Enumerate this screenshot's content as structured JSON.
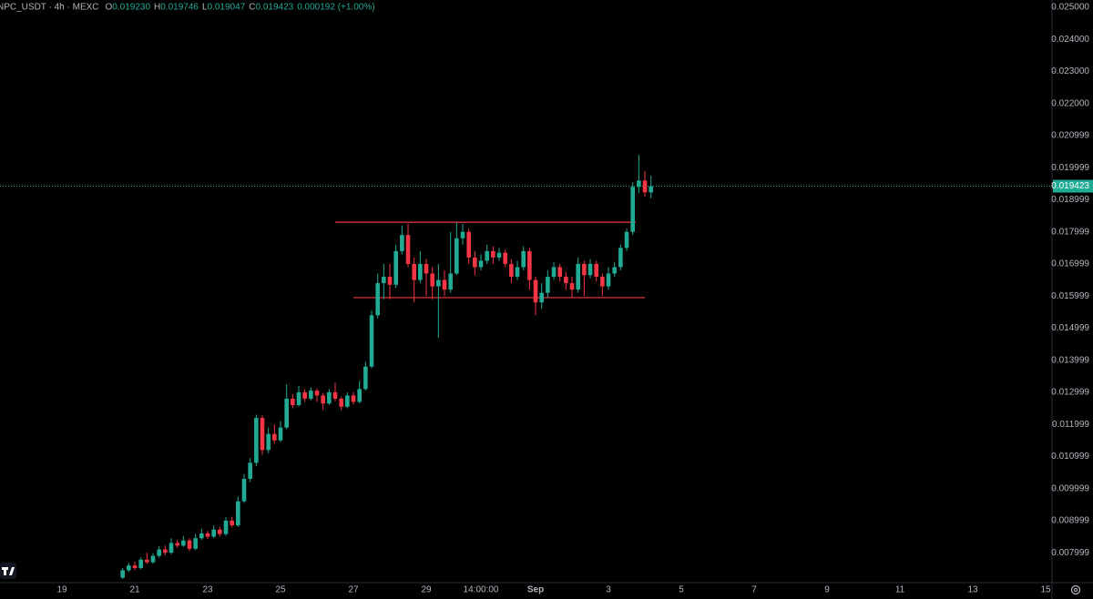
{
  "chart_data": {
    "type": "candlestick",
    "title": "NPC_USDT · 4h · MEXC",
    "ohlc_labels": [
      "O",
      "H",
      "L",
      "C"
    ],
    "ohlc_values": [
      "0.019230",
      "0.019746",
      "0.019047",
      "0.019423"
    ],
    "change": "0.000192 (+1.00%)",
    "up_color": "#22ab94",
    "down_color": "#f23645",
    "last_price": 0.019423,
    "hlines": [
      {
        "value": 0.0183,
        "color": "#f23645"
      },
      {
        "value": 0.01595,
        "color": "#f23645"
      }
    ],
    "ylim": [
      0.007066,
      0.025227
    ],
    "yticks": [
      {
        "value": 0.025,
        "label": "0.025000"
      },
      {
        "value": 0.024,
        "label": "0.024000"
      },
      {
        "value": 0.023,
        "label": "0.023000"
      },
      {
        "value": 0.022,
        "label": "0.022000"
      },
      0.020999,
      0.019999,
      0.018999,
      0.017999,
      0.016999,
      0.015999,
      0.014999,
      0.013999,
      0.012999,
      0.011999,
      0.010999,
      0.009999,
      0.008999,
      0.007999
    ],
    "categories": [
      "19",
      null,
      null,
      null,
      null,
      null,
      null,
      null,
      null,
      null,
      null,
      null,
      "21",
      null,
      null,
      null,
      null,
      null,
      null,
      null,
      null,
      null,
      null,
      null,
      "23",
      null,
      null,
      null,
      null,
      null,
      null,
      null,
      null,
      null,
      null,
      null,
      "25",
      null,
      null,
      null,
      null,
      null,
      null,
      null,
      null,
      null,
      null,
      null,
      "27",
      null,
      null,
      null,
      null,
      null,
      null,
      null,
      null,
      null,
      null,
      null,
      "29",
      null,
      null,
      null,
      null,
      null,
      null,
      null,
      null,
      "14:00:00",
      null,
      null,
      null,
      null,
      null,
      null,
      null,
      null,
      "Sep",
      null,
      null,
      null,
      null,
      null,
      null,
      null,
      null,
      null,
      null,
      null,
      "3",
      null,
      null,
      null,
      null,
      null,
      null,
      null,
      null,
      null,
      null,
      null,
      "5",
      null,
      null,
      null,
      null,
      null,
      null,
      null,
      null,
      null,
      null,
      null,
      "7",
      null,
      null,
      null,
      null,
      null,
      null,
      null,
      null,
      null,
      null,
      null,
      "9",
      null,
      null,
      null,
      null,
      null,
      null,
      null,
      null,
      null,
      null,
      null,
      "11",
      null,
      null,
      null,
      null,
      null,
      null,
      null,
      null,
      null,
      null,
      null,
      "13",
      null,
      null,
      null,
      null,
      null,
      null,
      null,
      null,
      null,
      null,
      null,
      "15"
    ],
    "open": [
      null,
      null,
      null,
      null,
      null,
      null,
      null,
      null,
      null,
      null,
      0.00722,
      0.00745,
      0.0076,
      0.00752,
      0.00778,
      0.0077,
      0.0079,
      0.0081,
      0.008,
      0.0083,
      0.00822,
      0.00838,
      0.00812,
      0.00845,
      0.0086,
      0.0085,
      0.00872,
      0.00858,
      0.009,
      0.00885,
      0.0096,
      0.0103,
      0.0108,
      0.0122,
      0.0112,
      0.0117,
      0.0115,
      0.0119,
      0.0128,
      0.0126,
      0.013,
      0.0128,
      0.01305,
      0.0129,
      0.01265,
      0.013,
      0.0128,
      0.01255,
      0.0129,
      0.0127,
      0.0131,
      0.0138,
      0.0154,
      0.0164,
      0.0166,
      0.01635,
      0.0174,
      0.0179,
      0.017,
      0.0165,
      0.017,
      0.0167,
      0.0163,
      0.0165,
      0.0162,
      0.0167,
      0.0178,
      0.018,
      0.0172,
      0.0169,
      0.0171,
      0.0174,
      0.0172,
      0.01735,
      0.017,
      0.0166,
      0.0169,
      0.0174,
      0.0165,
      0.0158,
      0.0161,
      0.0166,
      0.0169,
      0.0166,
      0.0164,
      0.0162,
      0.017,
      0.01665,
      0.017,
      0.0166,
      0.0163,
      0.0167,
      0.0169,
      0.0175,
      0.018,
      0.0194,
      0.0196,
      0.01923,
      null,
      null,
      null,
      null,
      null,
      null,
      null,
      null,
      null,
      null,
      null,
      null,
      null,
      null,
      null,
      null,
      null,
      null,
      null,
      null,
      null,
      null,
      null,
      null,
      null,
      null,
      null,
      null,
      null,
      null,
      null,
      null,
      null,
      null,
      null,
      null,
      null,
      null,
      null,
      null,
      null,
      null,
      null,
      null,
      null,
      null,
      null,
      null,
      null,
      null,
      null,
      null,
      null,
      null,
      null,
      null,
      null,
      null,
      null,
      null,
      null,
      null,
      null,
      null,
      null
    ],
    "high": [
      null,
      null,
      null,
      null,
      null,
      null,
      null,
      null,
      null,
      null,
      0.00752,
      0.00768,
      0.00772,
      0.00785,
      0.008,
      0.00798,
      0.0082,
      0.00822,
      0.00845,
      0.0084,
      0.00852,
      0.00845,
      0.00858,
      0.00875,
      0.00868,
      0.00885,
      0.0088,
      0.0091,
      0.00912,
      0.00975,
      0.01045,
      0.01095,
      0.0123,
      0.01228,
      0.0119,
      0.012,
      0.0121,
      0.01325,
      0.01295,
      0.0132,
      0.0131,
      0.01315,
      0.01312,
      0.01298,
      0.0131,
      0.0133,
      0.01285,
      0.013,
      0.013,
      0.01335,
      0.01395,
      0.01555,
      0.0167,
      0.017,
      0.017,
      0.0176,
      0.0182,
      0.01825,
      0.0172,
      0.0174,
      0.01715,
      0.0169,
      0.017,
      0.0168,
      0.018,
      0.0183,
      0.01825,
      0.0181,
      0.0174,
      0.0173,
      0.0176,
      0.01755,
      0.0175,
      0.01745,
      0.01715,
      0.0171,
      0.01755,
      0.0175,
      0.0166,
      0.0164,
      0.0168,
      0.01705,
      0.017,
      0.01675,
      0.0166,
      0.0172,
      0.0171,
      0.01715,
      0.0171,
      0.0167,
      0.0169,
      0.01705,
      0.0176,
      0.0181,
      0.01955,
      0.0204,
      0.0199,
      0.019746,
      null,
      null,
      null,
      null,
      null,
      null,
      null,
      null,
      null,
      null,
      null,
      null,
      null,
      null,
      null,
      null,
      null,
      null,
      null,
      null,
      null,
      null,
      null,
      null,
      null,
      null,
      null,
      null,
      null,
      null,
      null,
      null,
      null,
      null,
      null,
      null,
      null,
      null,
      null,
      null,
      null,
      null,
      null,
      null,
      null,
      null,
      null,
      null,
      null,
      null,
      null,
      null,
      null,
      null,
      null,
      null,
      null,
      null,
      null,
      null,
      null,
      null,
      null,
      null,
      null
    ],
    "low": [
      null,
      null,
      null,
      null,
      null,
      null,
      null,
      null,
      null,
      null,
      0.00718,
      0.0074,
      0.00745,
      0.00748,
      0.00765,
      0.00766,
      0.00785,
      0.00792,
      0.00795,
      0.00815,
      0.00818,
      0.00805,
      0.00808,
      0.0084,
      0.00842,
      0.00845,
      0.0085,
      0.00852,
      0.00878,
      0.0088,
      0.00955,
      0.0102,
      0.0107,
      0.01105,
      0.0111,
      0.0114,
      0.01145,
      0.01185,
      0.0125,
      0.01255,
      0.0127,
      0.01275,
      0.0127,
      0.01245,
      0.0126,
      0.01272,
      0.01245,
      0.0125,
      0.01262,
      0.01265,
      0.01305,
      0.01375,
      0.0153,
      0.0159,
      0.0159,
      0.01625,
      0.0173,
      0.0169,
      0.0158,
      0.0164,
      0.016,
      0.0159,
      0.0147,
      0.016,
      0.0161,
      0.01665,
      0.0176,
      0.017,
      0.01665,
      0.0168,
      0.017,
      0.017,
      0.0171,
      0.0169,
      0.0164,
      0.0165,
      0.0168,
      0.0162,
      0.0154,
      0.0156,
      0.01595,
      0.0165,
      0.01645,
      0.0162,
      0.01595,
      0.0161,
      0.016,
      0.01655,
      0.01645,
      0.016,
      0.0162,
      0.0166,
      0.0168,
      0.0174,
      0.0179,
      0.0192,
      0.0191,
      0.019047,
      null,
      null,
      null,
      null,
      null,
      null,
      null,
      null,
      null,
      null,
      null,
      null,
      null,
      null,
      null,
      null,
      null,
      null,
      null,
      null,
      null,
      null,
      null,
      null,
      null,
      null,
      null,
      null,
      null,
      null,
      null,
      null,
      null,
      null,
      null,
      null,
      null,
      null,
      null,
      null,
      null,
      null,
      null,
      null,
      null,
      null,
      null,
      null,
      null,
      null,
      null,
      null,
      null,
      null,
      null,
      null,
      null,
      null,
      null,
      null,
      null,
      null,
      null,
      null,
      null
    ],
    "close": [
      null,
      null,
      null,
      null,
      null,
      null,
      null,
      null,
      null,
      null,
      0.00745,
      0.0076,
      0.00752,
      0.00778,
      0.0077,
      0.0079,
      0.0081,
      0.008,
      0.0083,
      0.00822,
      0.00838,
      0.00812,
      0.00845,
      0.0086,
      0.0085,
      0.00872,
      0.00858,
      0.009,
      0.00885,
      0.0096,
      0.0103,
      0.0108,
      0.0122,
      0.0112,
      0.0117,
      0.0115,
      0.0119,
      0.0128,
      0.0126,
      0.013,
      0.0128,
      0.01305,
      0.0129,
      0.01265,
      0.013,
      0.0128,
      0.01255,
      0.0129,
      0.0127,
      0.0131,
      0.0138,
      0.0154,
      0.0164,
      0.0166,
      0.01635,
      0.0174,
      0.0179,
      0.017,
      0.0165,
      0.017,
      0.0167,
      0.0163,
      0.0165,
      0.0162,
      0.0167,
      0.0178,
      0.018,
      0.0172,
      0.0169,
      0.0171,
      0.0174,
      0.0172,
      0.01735,
      0.017,
      0.0166,
      0.0169,
      0.0174,
      0.0165,
      0.0158,
      0.0161,
      0.0166,
      0.0169,
      0.0166,
      0.0164,
      0.0162,
      0.017,
      0.01665,
      0.017,
      0.0166,
      0.0163,
      0.0167,
      0.0169,
      0.0175,
      0.018,
      0.0194,
      0.0196,
      0.01923,
      0.019423,
      null,
      null,
      null,
      null,
      null,
      null,
      null,
      null,
      null,
      null,
      null,
      null,
      null,
      null,
      null,
      null,
      null,
      null,
      null,
      null,
      null,
      null,
      null,
      null,
      null,
      null,
      null,
      null,
      null,
      null,
      null,
      null,
      null,
      null,
      null,
      null,
      null,
      null,
      null,
      null,
      null,
      null,
      null,
      null,
      null,
      null,
      null,
      null,
      null,
      null,
      null,
      null,
      null,
      null,
      null,
      null,
      null,
      null,
      null,
      null,
      null,
      null,
      null,
      null,
      null
    ]
  }
}
